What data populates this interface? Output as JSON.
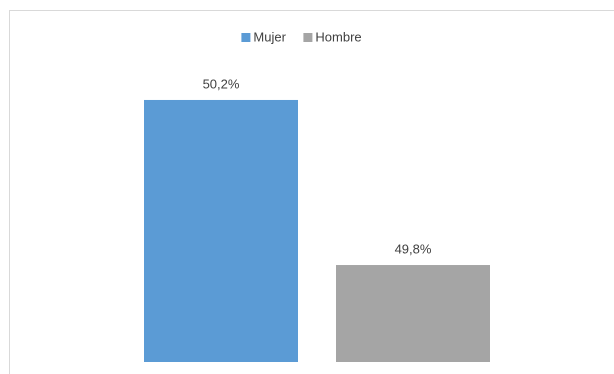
{
  "chart_data": {
    "type": "bar",
    "categories": [
      null
    ],
    "series": [
      {
        "name": "Mujer",
        "color": "#5b9bd5",
        "values": [
          50.2
        ],
        "value_labels": [
          "50,2%"
        ]
      },
      {
        "name": "Hombre",
        "color": "#a5a5a5",
        "values": [
          49.8
        ],
        "value_labels": [
          "49,8%"
        ]
      }
    ],
    "ylim": [
      49.565,
      50.3
    ],
    "legend": "top"
  }
}
